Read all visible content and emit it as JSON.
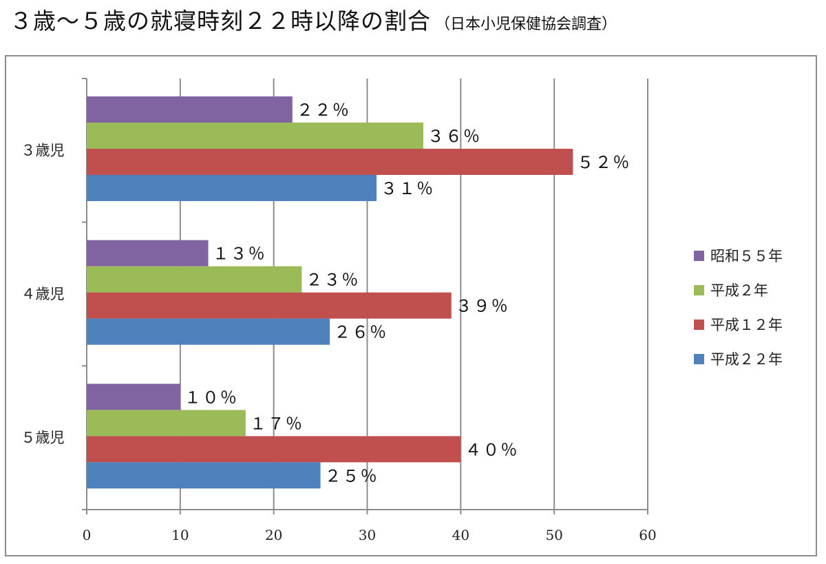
{
  "title": "３歳～５歳の就寝時刻２２時以降の割合",
  "subtitle": "（日本小児保健協会調査）",
  "chart_data": {
    "type": "bar",
    "orientation": "horizontal",
    "categories": [
      "３歳児",
      "４歳児",
      "５歳児"
    ],
    "series": [
      {
        "name": "昭和５５年",
        "color": "#8064a2",
        "values": [
          22,
          13,
          10
        ],
        "labels": [
          "２２％",
          "１３％",
          "１０％"
        ]
      },
      {
        "name": "平成２年",
        "color": "#9bbb59",
        "values": [
          36,
          23,
          17
        ],
        "labels": [
          "３６％",
          "２３％",
          "１７％"
        ]
      },
      {
        "name": "平成１２年",
        "color": "#c0504d",
        "values": [
          52,
          39,
          40
        ],
        "labels": [
          "５２％",
          "３９％",
          "４０％"
        ]
      },
      {
        "name": "平成２２年",
        "color": "#4f81bd",
        "values": [
          31,
          26,
          25
        ],
        "labels": [
          "３１％",
          "２６％",
          "２５％"
        ]
      }
    ],
    "xlim": [
      0,
      60
    ],
    "xticks": [
      "0",
      "10",
      "20",
      "30",
      "40",
      "50",
      "60"
    ],
    "grid": true,
    "legend": "right"
  }
}
